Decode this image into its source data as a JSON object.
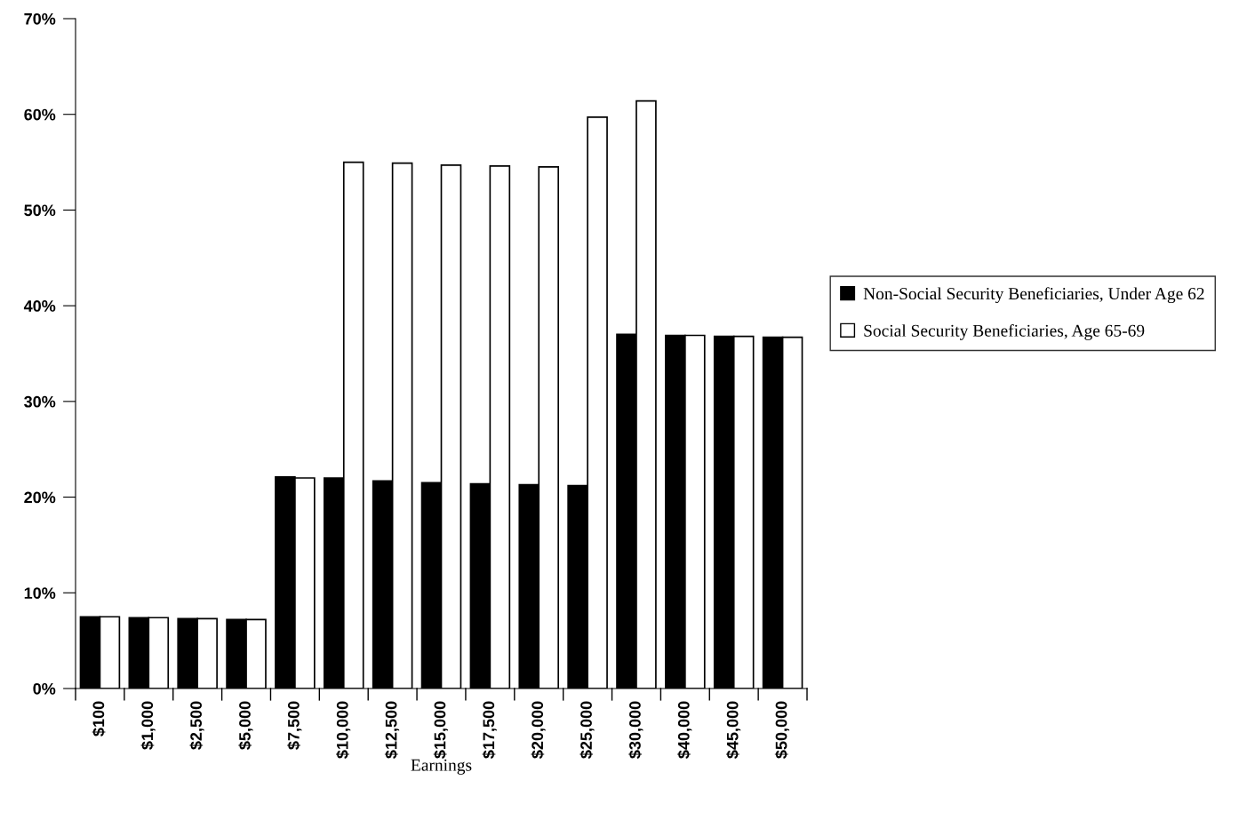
{
  "chart_data": {
    "type": "bar",
    "xlabel": "Earnings",
    "categories": [
      "$100",
      "$1,000",
      "$2,500",
      "$5,000",
      "$7,500",
      "$10,000",
      "$12,500",
      "$15,000",
      "$17,500",
      "$20,000",
      "$25,000",
      "$30,000",
      "$40,000",
      "$45,000",
      "$50,000"
    ],
    "series": [
      {
        "name": "Non-Social Security Beneficiaries, Under Age 62",
        "color": "#000000",
        "values": [
          7.5,
          7.4,
          7.3,
          7.2,
          22.1,
          22.0,
          21.7,
          21.5,
          21.4,
          21.3,
          21.2,
          37.0,
          36.9,
          36.8,
          36.7
        ]
      },
      {
        "name": "Social Security Beneficiaries, Age 65-69",
        "color": "#ffffff",
        "values": [
          7.5,
          7.4,
          7.3,
          7.2,
          22.0,
          55.0,
          54.9,
          54.7,
          54.6,
          54.5,
          59.7,
          61.4,
          36.9,
          36.8,
          36.7
        ]
      }
    ],
    "ylim": [
      0,
      70
    ],
    "yticks": [
      {
        "value": 0,
        "label": "0%"
      },
      {
        "value": 10,
        "label": "10%"
      },
      {
        "value": 20,
        "label": "20%"
      },
      {
        "value": 30,
        "label": "30%"
      },
      {
        "value": 40,
        "label": "40%"
      },
      {
        "value": 50,
        "label": "50%"
      },
      {
        "value": 60,
        "label": "60%"
      },
      {
        "value": 70,
        "label": "70%"
      }
    ],
    "grid": false,
    "legend": "right"
  }
}
